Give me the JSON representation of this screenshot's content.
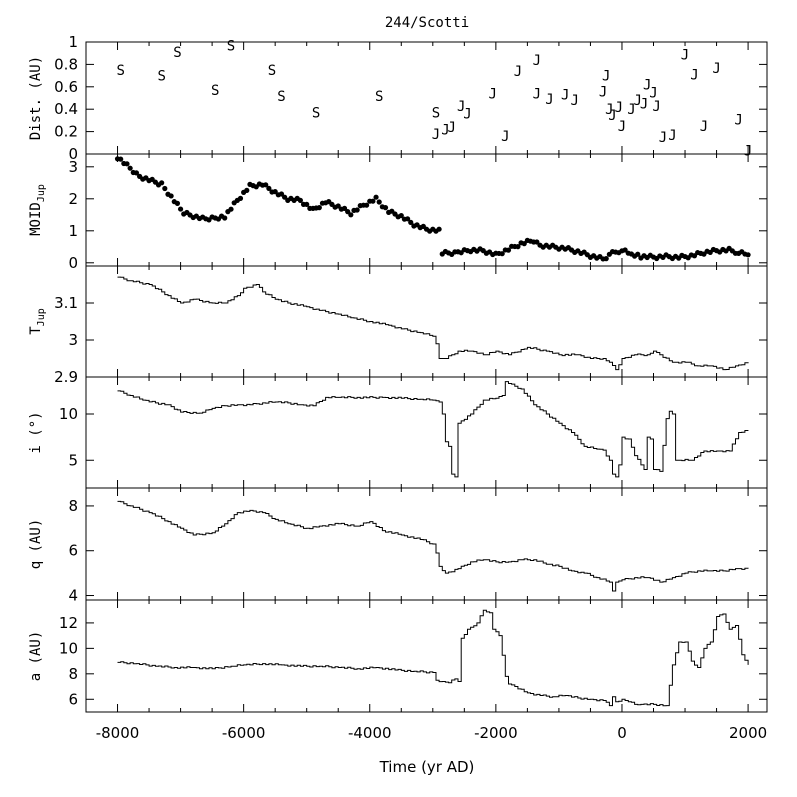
{
  "chart_data": {
    "title": "244/Scotti",
    "xlabel": "Time (yr AD)",
    "xlim": [
      -8500,
      2300
    ],
    "xticks": [
      -8000,
      -6000,
      -4000,
      -2000,
      0,
      2000
    ],
    "panels": [
      {
        "id": "dist",
        "type": "scatter",
        "ylabel": "Dist. (AU)",
        "ylim": [
          0,
          1
        ],
        "yticks": [
          0,
          0.2,
          0.4,
          0.6,
          0.8,
          1
        ],
        "ytick_labels": [
          "0",
          "0.2",
          "0.4",
          "0.6",
          "0.8",
          "1"
        ],
        "marker_labels": [
          "S",
          "J"
        ],
        "points": [
          {
            "x": -7950,
            "y": 0.75,
            "m": "S"
          },
          {
            "x": -7300,
            "y": 0.7,
            "m": "S"
          },
          {
            "x": -7050,
            "y": 0.91,
            "m": "S"
          },
          {
            "x": -6450,
            "y": 0.57,
            "m": "S"
          },
          {
            "x": -6200,
            "y": 0.97,
            "m": "S"
          },
          {
            "x": -5550,
            "y": 0.75,
            "m": "S"
          },
          {
            "x": -5400,
            "y": 0.52,
            "m": "S"
          },
          {
            "x": -4850,
            "y": 0.37,
            "m": "S"
          },
          {
            "x": -3850,
            "y": 0.52,
            "m": "S"
          },
          {
            "x": -2950,
            "y": 0.37,
            "m": "S"
          },
          {
            "x": -2950,
            "y": 0.18,
            "m": "J"
          },
          {
            "x": -2800,
            "y": 0.22,
            "m": "J"
          },
          {
            "x": -2700,
            "y": 0.24,
            "m": "J"
          },
          {
            "x": -2550,
            "y": 0.43,
            "m": "J"
          },
          {
            "x": -2450,
            "y": 0.36,
            "m": "J"
          },
          {
            "x": -2050,
            "y": 0.54,
            "m": "J"
          },
          {
            "x": -1850,
            "y": 0.16,
            "m": "J"
          },
          {
            "x": -1650,
            "y": 0.74,
            "m": "J"
          },
          {
            "x": -1350,
            "y": 0.84,
            "m": "J"
          },
          {
            "x": -1350,
            "y": 0.54,
            "m": "J"
          },
          {
            "x": -1150,
            "y": 0.49,
            "m": "J"
          },
          {
            "x": -900,
            "y": 0.53,
            "m": "J"
          },
          {
            "x": -750,
            "y": 0.48,
            "m": "J"
          },
          {
            "x": -300,
            "y": 0.56,
            "m": "J"
          },
          {
            "x": -250,
            "y": 0.7,
            "m": "J"
          },
          {
            "x": -200,
            "y": 0.4,
            "m": "J"
          },
          {
            "x": -150,
            "y": 0.35,
            "m": "J"
          },
          {
            "x": -50,
            "y": 0.42,
            "m": "J"
          },
          {
            "x": 0,
            "y": 0.25,
            "m": "J"
          },
          {
            "x": 150,
            "y": 0.4,
            "m": "J"
          },
          {
            "x": 250,
            "y": 0.48,
            "m": "J"
          },
          {
            "x": 350,
            "y": 0.45,
            "m": "J"
          },
          {
            "x": 400,
            "y": 0.62,
            "m": "J"
          },
          {
            "x": 500,
            "y": 0.55,
            "m": "J"
          },
          {
            "x": 550,
            "y": 0.43,
            "m": "J"
          },
          {
            "x": 650,
            "y": 0.15,
            "m": "J"
          },
          {
            "x": 800,
            "y": 0.17,
            "m": "J"
          },
          {
            "x": 1000,
            "y": 0.89,
            "m": "J"
          },
          {
            "x": 1150,
            "y": 0.71,
            "m": "J"
          },
          {
            "x": 1300,
            "y": 0.25,
            "m": "J"
          },
          {
            "x": 1500,
            "y": 0.77,
            "m": "J"
          },
          {
            "x": 1850,
            "y": 0.31,
            "m": "J"
          },
          {
            "x": 2000,
            "y": 0.03,
            "m": "J"
          }
        ]
      },
      {
        "id": "moid",
        "type": "scatter",
        "ylabel": "MOID",
        "ylabel_sub": "Jup",
        "ylim": [
          -0.1,
          3.4
        ],
        "yticks": [
          0,
          1,
          2,
          3
        ],
        "ytick_labels": [
          "0",
          "1",
          "2",
          "3"
        ],
        "x": [
          -8000,
          -7650,
          -7300,
          -6950,
          -6600,
          -6300,
          -6100,
          -5900,
          -5700,
          -5500,
          -5300,
          -5100,
          -4900,
          -4700,
          -4500,
          -4300,
          -4100,
          -3900,
          -3700,
          -3500,
          -3300,
          -3100,
          -2900,
          -2850,
          -2600,
          -2400,
          -2200,
          -2000,
          -1800,
          -1600,
          -1400,
          -1300,
          -1100,
          -900,
          -700,
          -500,
          -300,
          -150,
          0,
          150,
          300,
          500,
          700,
          900,
          1100,
          1300,
          1500,
          1700,
          1850,
          2000
        ],
        "y": [
          3.3,
          2.7,
          2.45,
          1.55,
          1.35,
          1.45,
          1.95,
          2.4,
          2.45,
          2.2,
          2.0,
          1.95,
          1.65,
          1.9,
          1.75,
          1.55,
          1.8,
          2.0,
          1.6,
          1.45,
          1.2,
          1.05,
          1.0,
          0.3,
          0.32,
          0.4,
          0.38,
          0.25,
          0.42,
          0.6,
          0.7,
          0.55,
          0.5,
          0.45,
          0.35,
          0.22,
          0.12,
          0.3,
          0.4,
          0.25,
          0.2,
          0.18,
          0.2,
          0.17,
          0.22,
          0.32,
          0.38,
          0.4,
          0.32,
          0.25
        ]
      },
      {
        "id": "tjup",
        "type": "line",
        "ylabel": "T",
        "ylabel_sub": "Jup",
        "ylim": [
          2.9,
          3.2
        ],
        "yticks": [
          2.9,
          3,
          3.1
        ],
        "ytick_labels": [
          "2.9",
          "3",
          "3.1"
        ],
        "x": [
          -8000,
          -7800,
          -7500,
          -7200,
          -7000,
          -6800,
          -6500,
          -6300,
          -6100,
          -6000,
          -5800,
          -5700,
          -5500,
          -5300,
          -5000,
          -4800,
          -4500,
          -4300,
          -4000,
          -3700,
          -3500,
          -3200,
          -3000,
          -2950,
          -2900,
          -2800,
          -2600,
          -2400,
          -2200,
          -2000,
          -1800,
          -1500,
          -1200,
          -1000,
          -700,
          -500,
          -300,
          -200,
          -100,
          0,
          200,
          400,
          500,
          600,
          800,
          1000,
          1200,
          1400,
          1600,
          1800,
          2000
        ],
        "y": [
          3.17,
          3.16,
          3.15,
          3.12,
          3.1,
          3.11,
          3.1,
          3.1,
          3.12,
          3.14,
          3.15,
          3.13,
          3.11,
          3.1,
          3.09,
          3.08,
          3.07,
          3.06,
          3.05,
          3.04,
          3.03,
          3.02,
          3.01,
          2.99,
          2.95,
          2.95,
          2.97,
          2.97,
          2.96,
          2.97,
          2.96,
          2.98,
          2.97,
          2.96,
          2.96,
          2.95,
          2.95,
          2.94,
          2.92,
          2.95,
          2.96,
          2.96,
          2.97,
          2.96,
          2.94,
          2.94,
          2.93,
          2.93,
          2.92,
          2.93,
          2.94
        ]
      },
      {
        "id": "incl",
        "type": "line",
        "ylabel": "i (°)",
        "ylim": [
          2,
          14
        ],
        "yticks": [
          5,
          10
        ],
        "ytick_labels": [
          "5",
          "10"
        ],
        "x": [
          -8000,
          -7800,
          -7600,
          -7400,
          -7200,
          -7000,
          -6700,
          -6500,
          -6300,
          -6100,
          -5900,
          -5700,
          -5500,
          -5300,
          -5100,
          -4900,
          -4700,
          -4500,
          -4200,
          -3800,
          -3500,
          -3200,
          -3000,
          -2900,
          -2850,
          -2800,
          -2750,
          -2700,
          -2650,
          -2600,
          -2400,
          -2200,
          -2000,
          -1900,
          -1850,
          -1800,
          -1600,
          -1400,
          -1200,
          -1000,
          -800,
          -600,
          -400,
          -300,
          -200,
          -150,
          -100,
          -50,
          0,
          100,
          200,
          300,
          350,
          400,
          450,
          500,
          600,
          700,
          750,
          800,
          850,
          900,
          1100,
          1300,
          1500,
          1700,
          1850,
          2000
        ],
        "y": [
          12.5,
          12.0,
          11.5,
          11.2,
          11.0,
          10.2,
          10.1,
          10.6,
          10.9,
          11.0,
          11.0,
          11.2,
          11.3,
          11.2,
          11.0,
          10.9,
          11.8,
          11.8,
          11.8,
          11.8,
          11.7,
          11.6,
          11.5,
          11.3,
          10.0,
          7.0,
          6.5,
          3.5,
          3.2,
          9.0,
          10.0,
          11.5,
          11.7,
          12.0,
          13.5,
          13.3,
          12.7,
          11.0,
          10.0,
          9.0,
          8.0,
          6.5,
          6.2,
          6.1,
          5.0,
          3.5,
          3.2,
          4.5,
          7.5,
          7.3,
          5.5,
          4.5,
          4.0,
          7.5,
          7.3,
          4.0,
          3.8,
          9.5,
          10.3,
          10.0,
          5.0,
          5.0,
          5.0,
          6.0,
          6.0,
          6.0,
          8.0,
          8.2
        ]
      },
      {
        "id": "q",
        "type": "line",
        "ylabel": "q (AU)",
        "ylim": [
          3.8,
          8.8
        ],
        "yticks": [
          4,
          6,
          8
        ],
        "ytick_labels": [
          "4",
          "6",
          "8"
        ],
        "x": [
          -8000,
          -7800,
          -7500,
          -7200,
          -7000,
          -6800,
          -6500,
          -6300,
          -6100,
          -5900,
          -5700,
          -5500,
          -5300,
          -5000,
          -4800,
          -4500,
          -4200,
          -4000,
          -3800,
          -3500,
          -3200,
          -3000,
          -2950,
          -2900,
          -2800,
          -2600,
          -2400,
          -2200,
          -2000,
          -1800,
          -1600,
          -1400,
          -1200,
          -1000,
          -800,
          -600,
          -400,
          -200,
          -150,
          -100,
          0,
          200,
          400,
          600,
          800,
          1000,
          1200,
          1400,
          1600,
          1800,
          2000
        ],
        "y": [
          8.2,
          8.0,
          7.7,
          7.3,
          7.0,
          6.7,
          6.8,
          7.2,
          7.7,
          7.8,
          7.7,
          7.4,
          7.2,
          7.0,
          7.1,
          7.2,
          7.1,
          7.3,
          6.9,
          6.7,
          6.5,
          6.3,
          5.9,
          5.3,
          5.0,
          5.2,
          5.5,
          5.6,
          5.5,
          5.5,
          5.6,
          5.6,
          5.4,
          5.3,
          5.1,
          5.0,
          4.8,
          4.6,
          4.2,
          4.6,
          4.7,
          4.8,
          4.8,
          4.6,
          4.8,
          5.0,
          5.1,
          5.1,
          5.1,
          5.2,
          5.2
        ]
      },
      {
        "id": "a",
        "type": "line",
        "ylabel": "a (AU)",
        "ylim": [
          5.0,
          13.8
        ],
        "yticks": [
          6,
          8,
          10,
          12
        ],
        "ytick_labels": [
          "6",
          "8",
          "10",
          "12"
        ],
        "x": [
          -8000,
          -7700,
          -7400,
          -7100,
          -6800,
          -6500,
          -6200,
          -6000,
          -5700,
          -5400,
          -5100,
          -4800,
          -4500,
          -4200,
          -3900,
          -3600,
          -3300,
          -3000,
          -2950,
          -2850,
          -2750,
          -2650,
          -2600,
          -2550,
          -2450,
          -2300,
          -2200,
          -2100,
          -2050,
          -2000,
          -1950,
          -1850,
          -1800,
          -1700,
          -1500,
          -1300,
          -1100,
          -900,
          -700,
          -500,
          -300,
          -200,
          -150,
          -100,
          0,
          100,
          200,
          300,
          500,
          700,
          800,
          900,
          1000,
          1100,
          1200,
          1300,
          1400,
          1500,
          1600,
          1700,
          1800,
          1900,
          2000
        ],
        "y": [
          8.9,
          8.8,
          8.6,
          8.5,
          8.5,
          8.4,
          8.6,
          8.7,
          8.8,
          8.7,
          8.6,
          8.6,
          8.5,
          8.4,
          8.5,
          8.3,
          8.2,
          8.1,
          7.5,
          7.4,
          7.3,
          7.6,
          7.4,
          10.8,
          11.5,
          12.0,
          13.0,
          12.8,
          11.5,
          11.3,
          11.0,
          7.8,
          7.2,
          7.0,
          6.5,
          6.3,
          6.2,
          6.3,
          6.1,
          6.0,
          5.9,
          5.5,
          6.2,
          5.8,
          6.0,
          5.8,
          5.6,
          5.6,
          5.6,
          5.5,
          8.7,
          10.5,
          10.5,
          9.0,
          8.5,
          10.0,
          10.5,
          12.5,
          12.7,
          11.5,
          11.8,
          9.5,
          8.7
        ]
      }
    ]
  }
}
